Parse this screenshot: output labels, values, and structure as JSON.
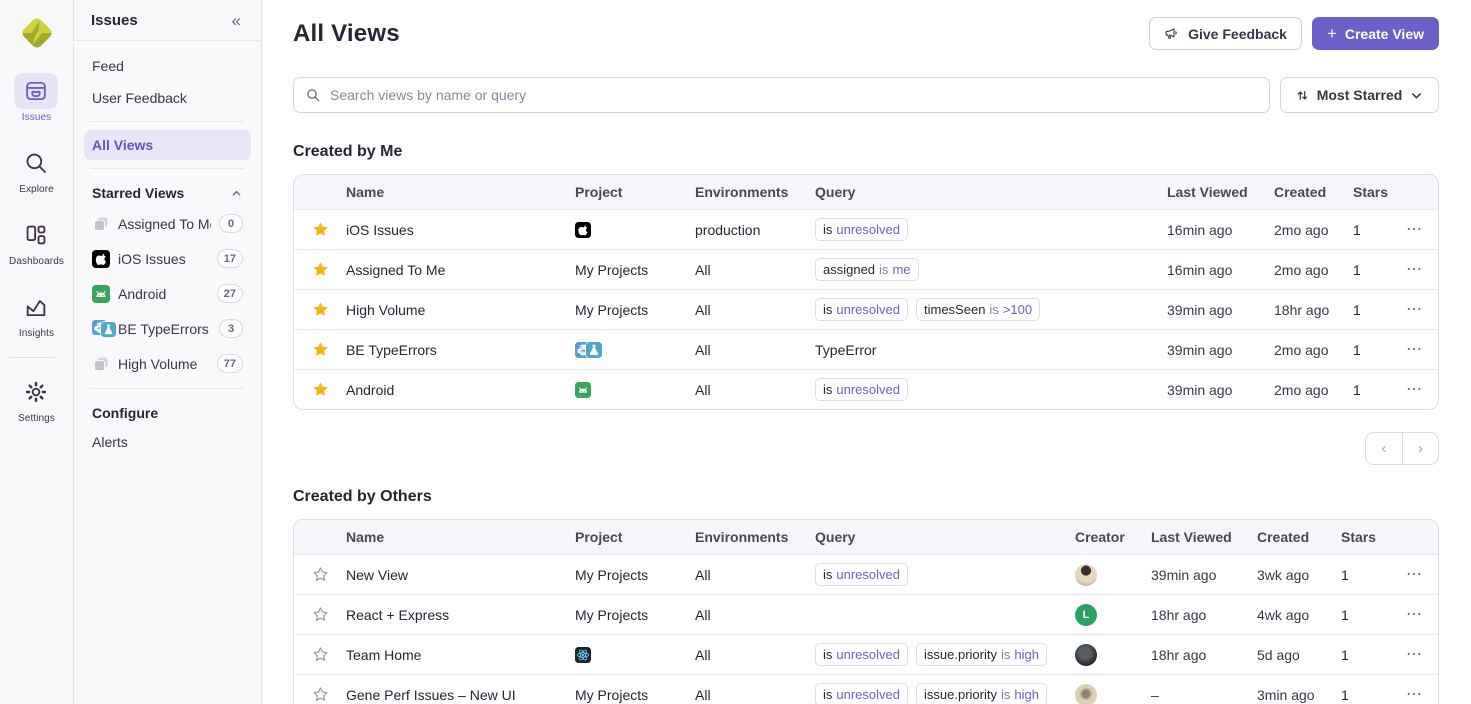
{
  "nav_rail": {
    "items": [
      {
        "label": "Issues",
        "icon": "issues-icon",
        "active": true
      },
      {
        "label": "Explore",
        "icon": "explore-icon",
        "active": false
      },
      {
        "label": "Dashboards",
        "icon": "dashboards-icon",
        "active": false
      },
      {
        "label": "Insights",
        "icon": "insights-icon",
        "active": false
      },
      {
        "label": "Settings",
        "icon": "settings-icon",
        "active": false,
        "divider_before": true
      }
    ]
  },
  "sidebar": {
    "title": "Issues",
    "collapse_glyph": "«",
    "primary_items": [
      {
        "label": "Feed"
      },
      {
        "label": "User Feedback"
      }
    ],
    "all_views_label": "All Views",
    "starred_header": "Starred Views",
    "starred_items": [
      {
        "label": "Assigned To Me",
        "count": "0",
        "icon": "stacked-projects"
      },
      {
        "label": "iOS Issues",
        "count": "17",
        "icon": "apple"
      },
      {
        "label": "Android",
        "count": "27",
        "icon": "android"
      },
      {
        "label": "BE TypeErrors",
        "count": "3",
        "icon": "python-flask"
      },
      {
        "label": "High Volume",
        "count": "77",
        "icon": "stacked-projects"
      }
    ],
    "configure_header": "Configure",
    "configure_items": [
      {
        "label": "Alerts"
      }
    ]
  },
  "header": {
    "title": "All Views",
    "give_feedback_label": "Give Feedback",
    "create_view_label": "Create View",
    "plus_glyph": "+"
  },
  "toolbar": {
    "search_placeholder": "Search views by name or query",
    "sort_label": "Most Starred"
  },
  "created_by_me": {
    "title": "Created by Me",
    "columns": [
      "Name",
      "Project",
      "Environments",
      "Query",
      "Last Viewed",
      "Created",
      "Stars"
    ],
    "rows": [
      {
        "starred": true,
        "name": "iOS Issues",
        "project": {
          "icons": [
            "apple"
          ]
        },
        "environments": "production",
        "query": [
          {
            "pill": true,
            "segments": [
              [
                "is",
                "key"
              ],
              [
                "unresolved",
                "val"
              ]
            ]
          }
        ],
        "last_viewed": "16min ago",
        "created": "2mo ago",
        "stars": "1"
      },
      {
        "starred": true,
        "name": "Assigned To Me",
        "project": {
          "text": "My Projects"
        },
        "environments": "All",
        "query": [
          {
            "pill": true,
            "segments": [
              [
                "assigned",
                "key"
              ],
              [
                "is",
                "op"
              ],
              [
                "me",
                "val"
              ]
            ]
          }
        ],
        "last_viewed": "16min ago",
        "created": "2mo ago",
        "stars": "1"
      },
      {
        "starred": true,
        "name": "High Volume",
        "project": {
          "text": "My Projects"
        },
        "environments": "All",
        "query": [
          {
            "pill": true,
            "segments": [
              [
                "is",
                "key"
              ],
              [
                "unresolved",
                "val"
              ]
            ]
          },
          {
            "pill": true,
            "segments": [
              [
                "timesSeen",
                "key"
              ],
              [
                "is",
                "op"
              ],
              [
                ">100",
                "val"
              ]
            ]
          }
        ],
        "last_viewed": "39min ago",
        "created": "18hr ago",
        "stars": "1"
      },
      {
        "starred": true,
        "name": "BE TypeErrors",
        "project": {
          "icons": [
            "python",
            "flask"
          ]
        },
        "environments": "All",
        "query": [
          {
            "pill": false,
            "segments": [
              [
                "TypeError",
                "key"
              ]
            ]
          }
        ],
        "last_viewed": "39min ago",
        "created": "2mo ago",
        "stars": "1"
      },
      {
        "starred": true,
        "name": "Android",
        "project": {
          "icons": [
            "android"
          ]
        },
        "environments": "All",
        "query": [
          {
            "pill": true,
            "segments": [
              [
                "is",
                "key"
              ],
              [
                "unresolved",
                "val"
              ]
            ]
          }
        ],
        "last_viewed": "39min ago",
        "created": "2mo ago",
        "stars": "1"
      }
    ]
  },
  "created_by_others": {
    "title": "Created by Others",
    "columns": [
      "Name",
      "Project",
      "Environments",
      "Query",
      "Creator",
      "Last Viewed",
      "Created",
      "Stars"
    ],
    "rows": [
      {
        "starred": false,
        "name": "New View",
        "project": {
          "text": "My Projects"
        },
        "environments": "All",
        "query": [
          {
            "pill": true,
            "segments": [
              [
                "is",
                "key"
              ],
              [
                "unresolved",
                "val"
              ]
            ]
          }
        ],
        "creator": {
          "kind": "photo",
          "avatar": "av-photo-tan"
        },
        "last_viewed": "39min ago",
        "created": "3wk ago",
        "stars": "1"
      },
      {
        "starred": false,
        "name": "React + Express",
        "project": {
          "text": "My Projects"
        },
        "environments": "All",
        "query": [],
        "creator": {
          "kind": "initial",
          "initial": "L",
          "color": "#2BA164"
        },
        "last_viewed": "18hr ago",
        "created": "4wk ago",
        "stars": "1"
      },
      {
        "starred": false,
        "name": "Team Home",
        "project": {
          "icons": [
            "react"
          ]
        },
        "environments": "All",
        "query": [
          {
            "pill": true,
            "segments": [
              [
                "is",
                "key"
              ],
              [
                "unresolved",
                "val"
              ]
            ]
          },
          {
            "pill": true,
            "segments": [
              [
                "issue.priority",
                "key"
              ],
              [
                "is",
                "op"
              ],
              [
                "high",
                "val"
              ]
            ]
          }
        ],
        "creator": {
          "kind": "photo",
          "avatar": "av-photo-dark"
        },
        "last_viewed": "18hr ago",
        "created": "5d ago",
        "stars": "1"
      },
      {
        "starred": false,
        "name": "Gene Perf Issues – New UI",
        "project": {
          "text": "My Projects"
        },
        "environments": "All",
        "query": [
          {
            "pill": true,
            "segments": [
              [
                "is",
                "key"
              ],
              [
                "unresolved",
                "val"
              ]
            ]
          },
          {
            "pill": true,
            "segments": [
              [
                "issue.priority",
                "key"
              ],
              [
                "is",
                "op"
              ],
              [
                "high",
                "val"
              ]
            ]
          }
        ],
        "creator": {
          "kind": "photo",
          "avatar": "av-photo-beige"
        },
        "last_viewed": "–",
        "created": "3min ago",
        "stars": "1"
      }
    ]
  },
  "pagination": {
    "prev_glyph": "‹",
    "next_glyph": "›"
  },
  "misc": {
    "row_menu_glyph": "⋯"
  },
  "colors": {
    "accent_purple": "#6C5FC7",
    "star_gold": "#F2B712",
    "creator_green": "#2BA164",
    "logo_lime": "#CED33D",
    "logo_olive": "#A2A72E"
  }
}
